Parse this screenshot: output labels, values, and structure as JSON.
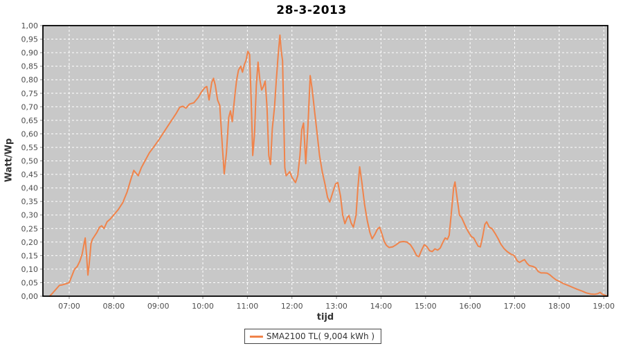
{
  "chart_data": {
    "type": "line",
    "title": "28-3-2013",
    "xlabel": "tijd",
    "ylabel": "Watt/Wp",
    "grid": "white-dashed",
    "x_range": [
      6.41,
      19.09
    ],
    "y_range": [
      0,
      1
    ],
    "x_ticks": [
      {
        "value": 7,
        "label": "07:00"
      },
      {
        "value": 8,
        "label": "08:00"
      },
      {
        "value": 9,
        "label": "09:00"
      },
      {
        "value": 10,
        "label": "10:00"
      },
      {
        "value": 11,
        "label": "11:00"
      },
      {
        "value": 12,
        "label": "12:00"
      },
      {
        "value": 13,
        "label": "13:00"
      },
      {
        "value": 14,
        "label": "14:00"
      },
      {
        "value": 15,
        "label": "15:00"
      },
      {
        "value": 16,
        "label": "16:00"
      },
      {
        "value": 17,
        "label": "17:00"
      },
      {
        "value": 18,
        "label": "18:00"
      },
      {
        "value": 19,
        "label": "19:00"
      }
    ],
    "y_ticks": [
      {
        "value": 0.0,
        "label": "0,00"
      },
      {
        "value": 0.05,
        "label": "0,05"
      },
      {
        "value": 0.1,
        "label": "0,10"
      },
      {
        "value": 0.15,
        "label": "0,15"
      },
      {
        "value": 0.2,
        "label": "0,20"
      },
      {
        "value": 0.25,
        "label": "0,25"
      },
      {
        "value": 0.3,
        "label": "0,30"
      },
      {
        "value": 0.35,
        "label": "0,35"
      },
      {
        "value": 0.4,
        "label": "0,40"
      },
      {
        "value": 0.45,
        "label": "0,45"
      },
      {
        "value": 0.5,
        "label": "0,50"
      },
      {
        "value": 0.55,
        "label": "0,55"
      },
      {
        "value": 0.6,
        "label": "0,60"
      },
      {
        "value": 0.65,
        "label": "0,65"
      },
      {
        "value": 0.7,
        "label": "0,70"
      },
      {
        "value": 0.75,
        "label": "0,75"
      },
      {
        "value": 0.8,
        "label": "0,80"
      },
      {
        "value": 0.85,
        "label": "0,85"
      },
      {
        "value": 0.9,
        "label": "0,90"
      },
      {
        "value": 0.95,
        "label": "0,95"
      },
      {
        "value": 1.0,
        "label": "1,00"
      }
    ],
    "legend": {
      "position": "bottom",
      "entries": [
        {
          "label": "SMA2100 TL( 9,004 kWh )",
          "color": "#f0834a"
        }
      ]
    },
    "colors": {
      "line": "#f0834a",
      "plot_bg": "#c8c8c8",
      "grid": "#ffffff",
      "plot_border": "#000000",
      "tick": "#8a8a8a",
      "tick_label": "#4d4d4d"
    },
    "series": [
      {
        "name": "SMA2100 TL( 9,004 kWh )",
        "color": "#f0834a",
        "points": [
          [
            6.56,
            0.0
          ],
          [
            6.62,
            0.01
          ],
          [
            6.7,
            0.025
          ],
          [
            6.78,
            0.04
          ],
          [
            6.85,
            0.042
          ],
          [
            6.93,
            0.046
          ],
          [
            7.0,
            0.05
          ],
          [
            7.06,
            0.075
          ],
          [
            7.12,
            0.1
          ],
          [
            7.18,
            0.11
          ],
          [
            7.24,
            0.13
          ],
          [
            7.29,
            0.155
          ],
          [
            7.33,
            0.19
          ],
          [
            7.36,
            0.215
          ],
          [
            7.39,
            0.15
          ],
          [
            7.42,
            0.078
          ],
          [
            7.45,
            0.12
          ],
          [
            7.49,
            0.195
          ],
          [
            7.52,
            0.21
          ],
          [
            7.56,
            0.22
          ],
          [
            7.62,
            0.235
          ],
          [
            7.68,
            0.255
          ],
          [
            7.73,
            0.26
          ],
          [
            7.78,
            0.25
          ],
          [
            7.85,
            0.275
          ],
          [
            7.92,
            0.285
          ],
          [
            8.0,
            0.3
          ],
          [
            8.1,
            0.32
          ],
          [
            8.2,
            0.345
          ],
          [
            8.3,
            0.385
          ],
          [
            8.38,
            0.43
          ],
          [
            8.45,
            0.465
          ],
          [
            8.5,
            0.455
          ],
          [
            8.55,
            0.445
          ],
          [
            8.62,
            0.475
          ],
          [
            8.7,
            0.5
          ],
          [
            8.8,
            0.53
          ],
          [
            8.9,
            0.552
          ],
          [
            9.0,
            0.575
          ],
          [
            9.1,
            0.6
          ],
          [
            9.2,
            0.625
          ],
          [
            9.3,
            0.65
          ],
          [
            9.4,
            0.675
          ],
          [
            9.48,
            0.698
          ],
          [
            9.55,
            0.702
          ],
          [
            9.62,
            0.695
          ],
          [
            9.7,
            0.71
          ],
          [
            9.8,
            0.715
          ],
          [
            9.9,
            0.735
          ],
          [
            9.97,
            0.755
          ],
          [
            10.04,
            0.77
          ],
          [
            10.09,
            0.775
          ],
          [
            10.14,
            0.725
          ],
          [
            10.2,
            0.79
          ],
          [
            10.24,
            0.805
          ],
          [
            10.28,
            0.78
          ],
          [
            10.33,
            0.725
          ],
          [
            10.38,
            0.705
          ],
          [
            10.44,
            0.55
          ],
          [
            10.48,
            0.452
          ],
          [
            10.53,
            0.53
          ],
          [
            10.58,
            0.66
          ],
          [
            10.62,
            0.685
          ],
          [
            10.66,
            0.645
          ],
          [
            10.72,
            0.745
          ],
          [
            10.76,
            0.8
          ],
          [
            10.8,
            0.835
          ],
          [
            10.85,
            0.85
          ],
          [
            10.89,
            0.828
          ],
          [
            10.93,
            0.855
          ],
          [
            10.97,
            0.872
          ],
          [
            11.01,
            0.905
          ],
          [
            11.05,
            0.893
          ],
          [
            11.09,
            0.7
          ],
          [
            11.12,
            0.52
          ],
          [
            11.16,
            0.6
          ],
          [
            11.2,
            0.78
          ],
          [
            11.24,
            0.865
          ],
          [
            11.28,
            0.8
          ],
          [
            11.32,
            0.762
          ],
          [
            11.36,
            0.775
          ],
          [
            11.4,
            0.795
          ],
          [
            11.44,
            0.7
          ],
          [
            11.48,
            0.52
          ],
          [
            11.52,
            0.487
          ],
          [
            11.56,
            0.62
          ],
          [
            11.61,
            0.7
          ],
          [
            11.65,
            0.8
          ],
          [
            11.69,
            0.89
          ],
          [
            11.73,
            0.965
          ],
          [
            11.76,
            0.905
          ],
          [
            11.79,
            0.87
          ],
          [
            11.81,
            0.715
          ],
          [
            11.84,
            0.475
          ],
          [
            11.87,
            0.445
          ],
          [
            11.91,
            0.452
          ],
          [
            11.95,
            0.46
          ],
          [
            12.0,
            0.44
          ],
          [
            12.04,
            0.43
          ],
          [
            12.08,
            0.42
          ],
          [
            12.13,
            0.445
          ],
          [
            12.18,
            0.52
          ],
          [
            12.22,
            0.615
          ],
          [
            12.26,
            0.64
          ],
          [
            12.31,
            0.49
          ],
          [
            12.36,
            0.63
          ],
          [
            12.41,
            0.815
          ],
          [
            12.45,
            0.77
          ],
          [
            12.51,
            0.68
          ],
          [
            12.57,
            0.595
          ],
          [
            12.62,
            0.52
          ],
          [
            12.68,
            0.46
          ],
          [
            12.74,
            0.415
          ],
          [
            12.8,
            0.365
          ],
          [
            12.85,
            0.348
          ],
          [
            12.92,
            0.385
          ],
          [
            12.98,
            0.415
          ],
          [
            13.03,
            0.42
          ],
          [
            13.09,
            0.37
          ],
          [
            13.14,
            0.3
          ],
          [
            13.19,
            0.268
          ],
          [
            13.24,
            0.29
          ],
          [
            13.28,
            0.298
          ],
          [
            13.33,
            0.27
          ],
          [
            13.38,
            0.255
          ],
          [
            13.44,
            0.3
          ],
          [
            13.48,
            0.4
          ],
          [
            13.52,
            0.478
          ],
          [
            13.57,
            0.42
          ],
          [
            13.63,
            0.34
          ],
          [
            13.69,
            0.28
          ],
          [
            13.75,
            0.235
          ],
          [
            13.8,
            0.212
          ],
          [
            13.86,
            0.228
          ],
          [
            13.92,
            0.248
          ],
          [
            13.97,
            0.255
          ],
          [
            14.02,
            0.23
          ],
          [
            14.07,
            0.203
          ],
          [
            14.12,
            0.188
          ],
          [
            14.18,
            0.18
          ],
          [
            14.26,
            0.182
          ],
          [
            14.34,
            0.19
          ],
          [
            14.42,
            0.2
          ],
          [
            14.5,
            0.202
          ],
          [
            14.58,
            0.2
          ],
          [
            14.66,
            0.19
          ],
          [
            14.73,
            0.172
          ],
          [
            14.8,
            0.15
          ],
          [
            14.85,
            0.146
          ],
          [
            14.91,
            0.17
          ],
          [
            14.97,
            0.19
          ],
          [
            15.03,
            0.183
          ],
          [
            15.09,
            0.168
          ],
          [
            15.15,
            0.165
          ],
          [
            15.21,
            0.175
          ],
          [
            15.27,
            0.17
          ],
          [
            15.33,
            0.178
          ],
          [
            15.39,
            0.2
          ],
          [
            15.44,
            0.215
          ],
          [
            15.49,
            0.21
          ],
          [
            15.53,
            0.225
          ],
          [
            15.58,
            0.31
          ],
          [
            15.63,
            0.4
          ],
          [
            15.66,
            0.422
          ],
          [
            15.71,
            0.36
          ],
          [
            15.76,
            0.3
          ],
          [
            15.81,
            0.29
          ],
          [
            15.87,
            0.268
          ],
          [
            15.92,
            0.25
          ],
          [
            15.97,
            0.235
          ],
          [
            16.03,
            0.22
          ],
          [
            16.08,
            0.215
          ],
          [
            16.13,
            0.2
          ],
          [
            16.18,
            0.185
          ],
          [
            16.23,
            0.182
          ],
          [
            16.28,
            0.22
          ],
          [
            16.33,
            0.265
          ],
          [
            16.37,
            0.275
          ],
          [
            16.43,
            0.255
          ],
          [
            16.49,
            0.25
          ],
          [
            16.56,
            0.232
          ],
          [
            16.63,
            0.212
          ],
          [
            16.69,
            0.192
          ],
          [
            16.76,
            0.176
          ],
          [
            16.83,
            0.165
          ],
          [
            16.91,
            0.156
          ],
          [
            16.99,
            0.15
          ],
          [
            17.06,
            0.13
          ],
          [
            17.11,
            0.125
          ],
          [
            17.17,
            0.131
          ],
          [
            17.22,
            0.135
          ],
          [
            17.28,
            0.121
          ],
          [
            17.33,
            0.113
          ],
          [
            17.41,
            0.11
          ],
          [
            17.47,
            0.105
          ],
          [
            17.53,
            0.091
          ],
          [
            17.59,
            0.086
          ],
          [
            17.66,
            0.086
          ],
          [
            17.73,
            0.085
          ],
          [
            17.79,
            0.079
          ],
          [
            17.86,
            0.069
          ],
          [
            17.93,
            0.06
          ],
          [
            18.0,
            0.055
          ],
          [
            18.1,
            0.046
          ],
          [
            18.2,
            0.04
          ],
          [
            18.31,
            0.032
          ],
          [
            18.41,
            0.025
          ],
          [
            18.51,
            0.019
          ],
          [
            18.61,
            0.012
          ],
          [
            18.71,
            0.008
          ],
          [
            18.79,
            0.007
          ],
          [
            18.86,
            0.009
          ],
          [
            18.92,
            0.014
          ],
          [
            18.96,
            0.008
          ],
          [
            19.0,
            0.005
          ],
          [
            19.05,
            0.002
          ],
          [
            19.09,
            0.0
          ]
        ]
      }
    ]
  }
}
